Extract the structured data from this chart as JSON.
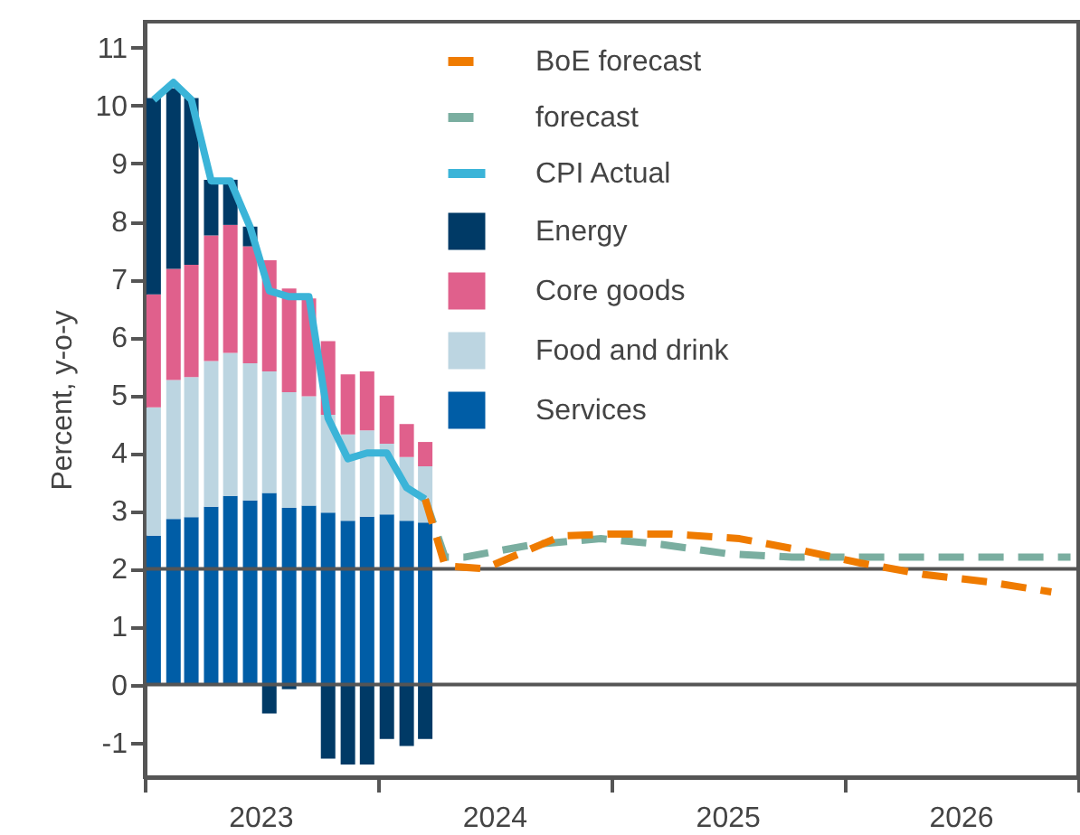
{
  "chart_data": {
    "type": "bar",
    "stacked": true,
    "ylabel": "Percent, y-o-y",
    "x": [
      "2023-01-15",
      "2023-02-15",
      "2023-03-15",
      "2023-04-15",
      "2023-05-15",
      "2023-06-15",
      "2023-07-15",
      "2023-08-15",
      "2023-09-15",
      "2023-10-15",
      "2023-11-15",
      "2023-12-15",
      "2024-01-15",
      "2024-02-15",
      "2024-03-15"
    ],
    "series": [
      {
        "name": "BoE forecast",
        "type": "line",
        "line_style": "dashed",
        "color": "#ef7b00",
        "x": [
          "2024-03-15",
          "2024-04-15",
          "2024-06-15",
          "2024-10-15",
          "2025-01-01",
          "2025-04-05",
          "2025-07-20",
          "2025-10-20",
          "2026-01-25",
          "2026-05-05",
          "2026-08-15",
          "2026-11-20"
        ],
        "values": [
          3.2,
          2.05,
          2.0,
          2.57,
          2.6,
          2.6,
          2.52,
          2.33,
          2.1,
          1.9,
          1.77,
          1.6
        ]
      },
      {
        "name": "forecast",
        "type": "line",
        "line_style": "dashed",
        "color": "#7aaea0",
        "x": [
          "2024-03-15",
          "2024-04-15",
          "2024-05-15",
          "2024-09-01",
          "2024-12-15",
          "2025-03-20",
          "2025-07-01",
          "2025-10-10",
          "2026-12-20"
        ],
        "values": [
          3.2,
          2.2,
          2.2,
          2.42,
          2.52,
          2.42,
          2.26,
          2.2,
          2.2
        ]
      },
      {
        "name": "CPI Actual",
        "type": "line",
        "line_style": "solid",
        "color": "#3bb4d8",
        "values": [
          10.1,
          10.4,
          10.1,
          8.7,
          8.7,
          7.9,
          6.8,
          6.7,
          6.7,
          4.6,
          3.9,
          4.0,
          4.0,
          3.4,
          3.2
        ]
      },
      {
        "name": "Services",
        "color": "#005da6",
        "values": [
          2.57,
          2.86,
          2.89,
          3.07,
          3.26,
          3.18,
          3.31,
          3.05,
          3.09,
          2.97,
          2.83,
          2.9,
          2.94,
          2.83,
          2.8
        ]
      },
      {
        "name": "Food and drink",
        "color": "#bcd5e1",
        "values": [
          2.22,
          2.4,
          2.42,
          2.52,
          2.47,
          2.37,
          2.1,
          2.0,
          1.89,
          1.69,
          1.49,
          1.49,
          1.22,
          1.1,
          0.97
        ]
      },
      {
        "name": "Core goods",
        "color": "#e0608c",
        "values": [
          1.95,
          1.92,
          1.94,
          2.17,
          2.21,
          2.02,
          1.92,
          1.79,
          1.69,
          1.27,
          1.04,
          1.02,
          0.83,
          0.57,
          0.42
        ]
      },
      {
        "name": "Energy",
        "color": "#003a66",
        "values": [
          3.39,
          3.12,
          2.88,
          0.96,
          0.78,
          0.34,
          -0.5,
          -0.08,
          null,
          -1.28,
          -1.38,
          -1.38,
          -0.94,
          -1.06,
          -0.94
        ]
      }
    ],
    "ref_lines": [
      {
        "axis": "y",
        "value": 0,
        "color": "#555555"
      },
      {
        "axis": "y",
        "value": 2,
        "color": "#555555"
      }
    ],
    "xlim": [
      "2023-01",
      "2027-01"
    ],
    "xticks": [
      {
        "value": "2023-01",
        "label": null
      },
      {
        "value": "2023-07",
        "label": "2023"
      },
      {
        "value": "2024-01",
        "label": null
      },
      {
        "value": "2024-07",
        "label": "2024"
      },
      {
        "value": "2025-01",
        "label": null
      },
      {
        "value": "2025-07",
        "label": "2025"
      },
      {
        "value": "2026-01",
        "label": null
      },
      {
        "value": "2026-07",
        "label": "2026"
      },
      {
        "value": "2027-01",
        "label": null
      }
    ],
    "ylim": [
      -1.6,
      11.45
    ],
    "yticks": [
      -1,
      0,
      1,
      2,
      3,
      4,
      5,
      6,
      7,
      8,
      9,
      10,
      11
    ],
    "grid": false,
    "legend": "top right"
  }
}
